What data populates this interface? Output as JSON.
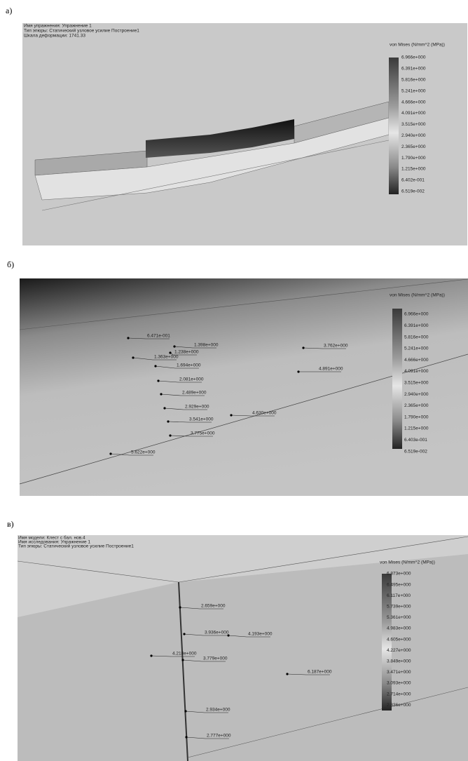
{
  "panels": [
    {
      "label": "а)",
      "header": [
        "Имя упражнения: Упражнение 1",
        "Тип эпюры: Статический узловое усилие Построение1",
        "Шкала деформации: 1741.33"
      ],
      "legend": {
        "title": "von Mises (N/mm^2 (MPa))",
        "values": [
          "6.966e+000",
          "6.391e+000",
          "5.816e+000",
          "5.241e+000",
          "4.666e+000",
          "4.091e+000",
          "3.515e+000",
          "2.940e+000",
          "2.365e+000",
          "1.790e+000",
          "1.215e+000",
          "6.402e-001",
          "6.519e-002"
        ]
      }
    },
    {
      "label": "б)",
      "legend": {
        "title": "von Mises (N/mm^2 (MPa))",
        "values": [
          "6.966e+000",
          "6.391e+000",
          "5.816e+000",
          "5.241e+000",
          "4.666e+000",
          "4.091e+000",
          "3.515e+000",
          "2.940e+000",
          "2.365e+000",
          "1.790e+000",
          "1.215e+000",
          "6.403e-001",
          "6.519e-002"
        ]
      },
      "probes": [
        "6.471e-001",
        "1.398e+000",
        "1.238e+000",
        "1.363e+000",
        "1.694e+000",
        "2.081e+000",
        "2.489e+000",
        "2.929e+000",
        "3.541e+000",
        "3.775e+000",
        "5.622e+000",
        "4.630e+000",
        "3.762e+000",
        "4.891e+000"
      ]
    },
    {
      "label": "в)",
      "header": [
        "Имя модели: Клест с бал. нов.4",
        "Имя исследования: Упражнение 1",
        "Тип эпюры: Статический узловое усилие Построение1"
      ],
      "legend": {
        "title": "von Mises (N/mm^2 (MPa))",
        "values": [
          "6.873e+000",
          "6.495e+000",
          "6.117e+000",
          "5.739e+000",
          "5.361e+000",
          "4.983e+000",
          "4.605e+000",
          "4.227e+000",
          "3.849e+000",
          "3.471e+000",
          "3.093e+000",
          "2.714e+000",
          "2.336e+000"
        ]
      },
      "probes": [
        "2.659e+000",
        "3.936e+000",
        "4.193e+000",
        "4.218e+000",
        "3.779e+000",
        "6.187e+000",
        "2.934e+000",
        "2.777e+000"
      ]
    }
  ]
}
